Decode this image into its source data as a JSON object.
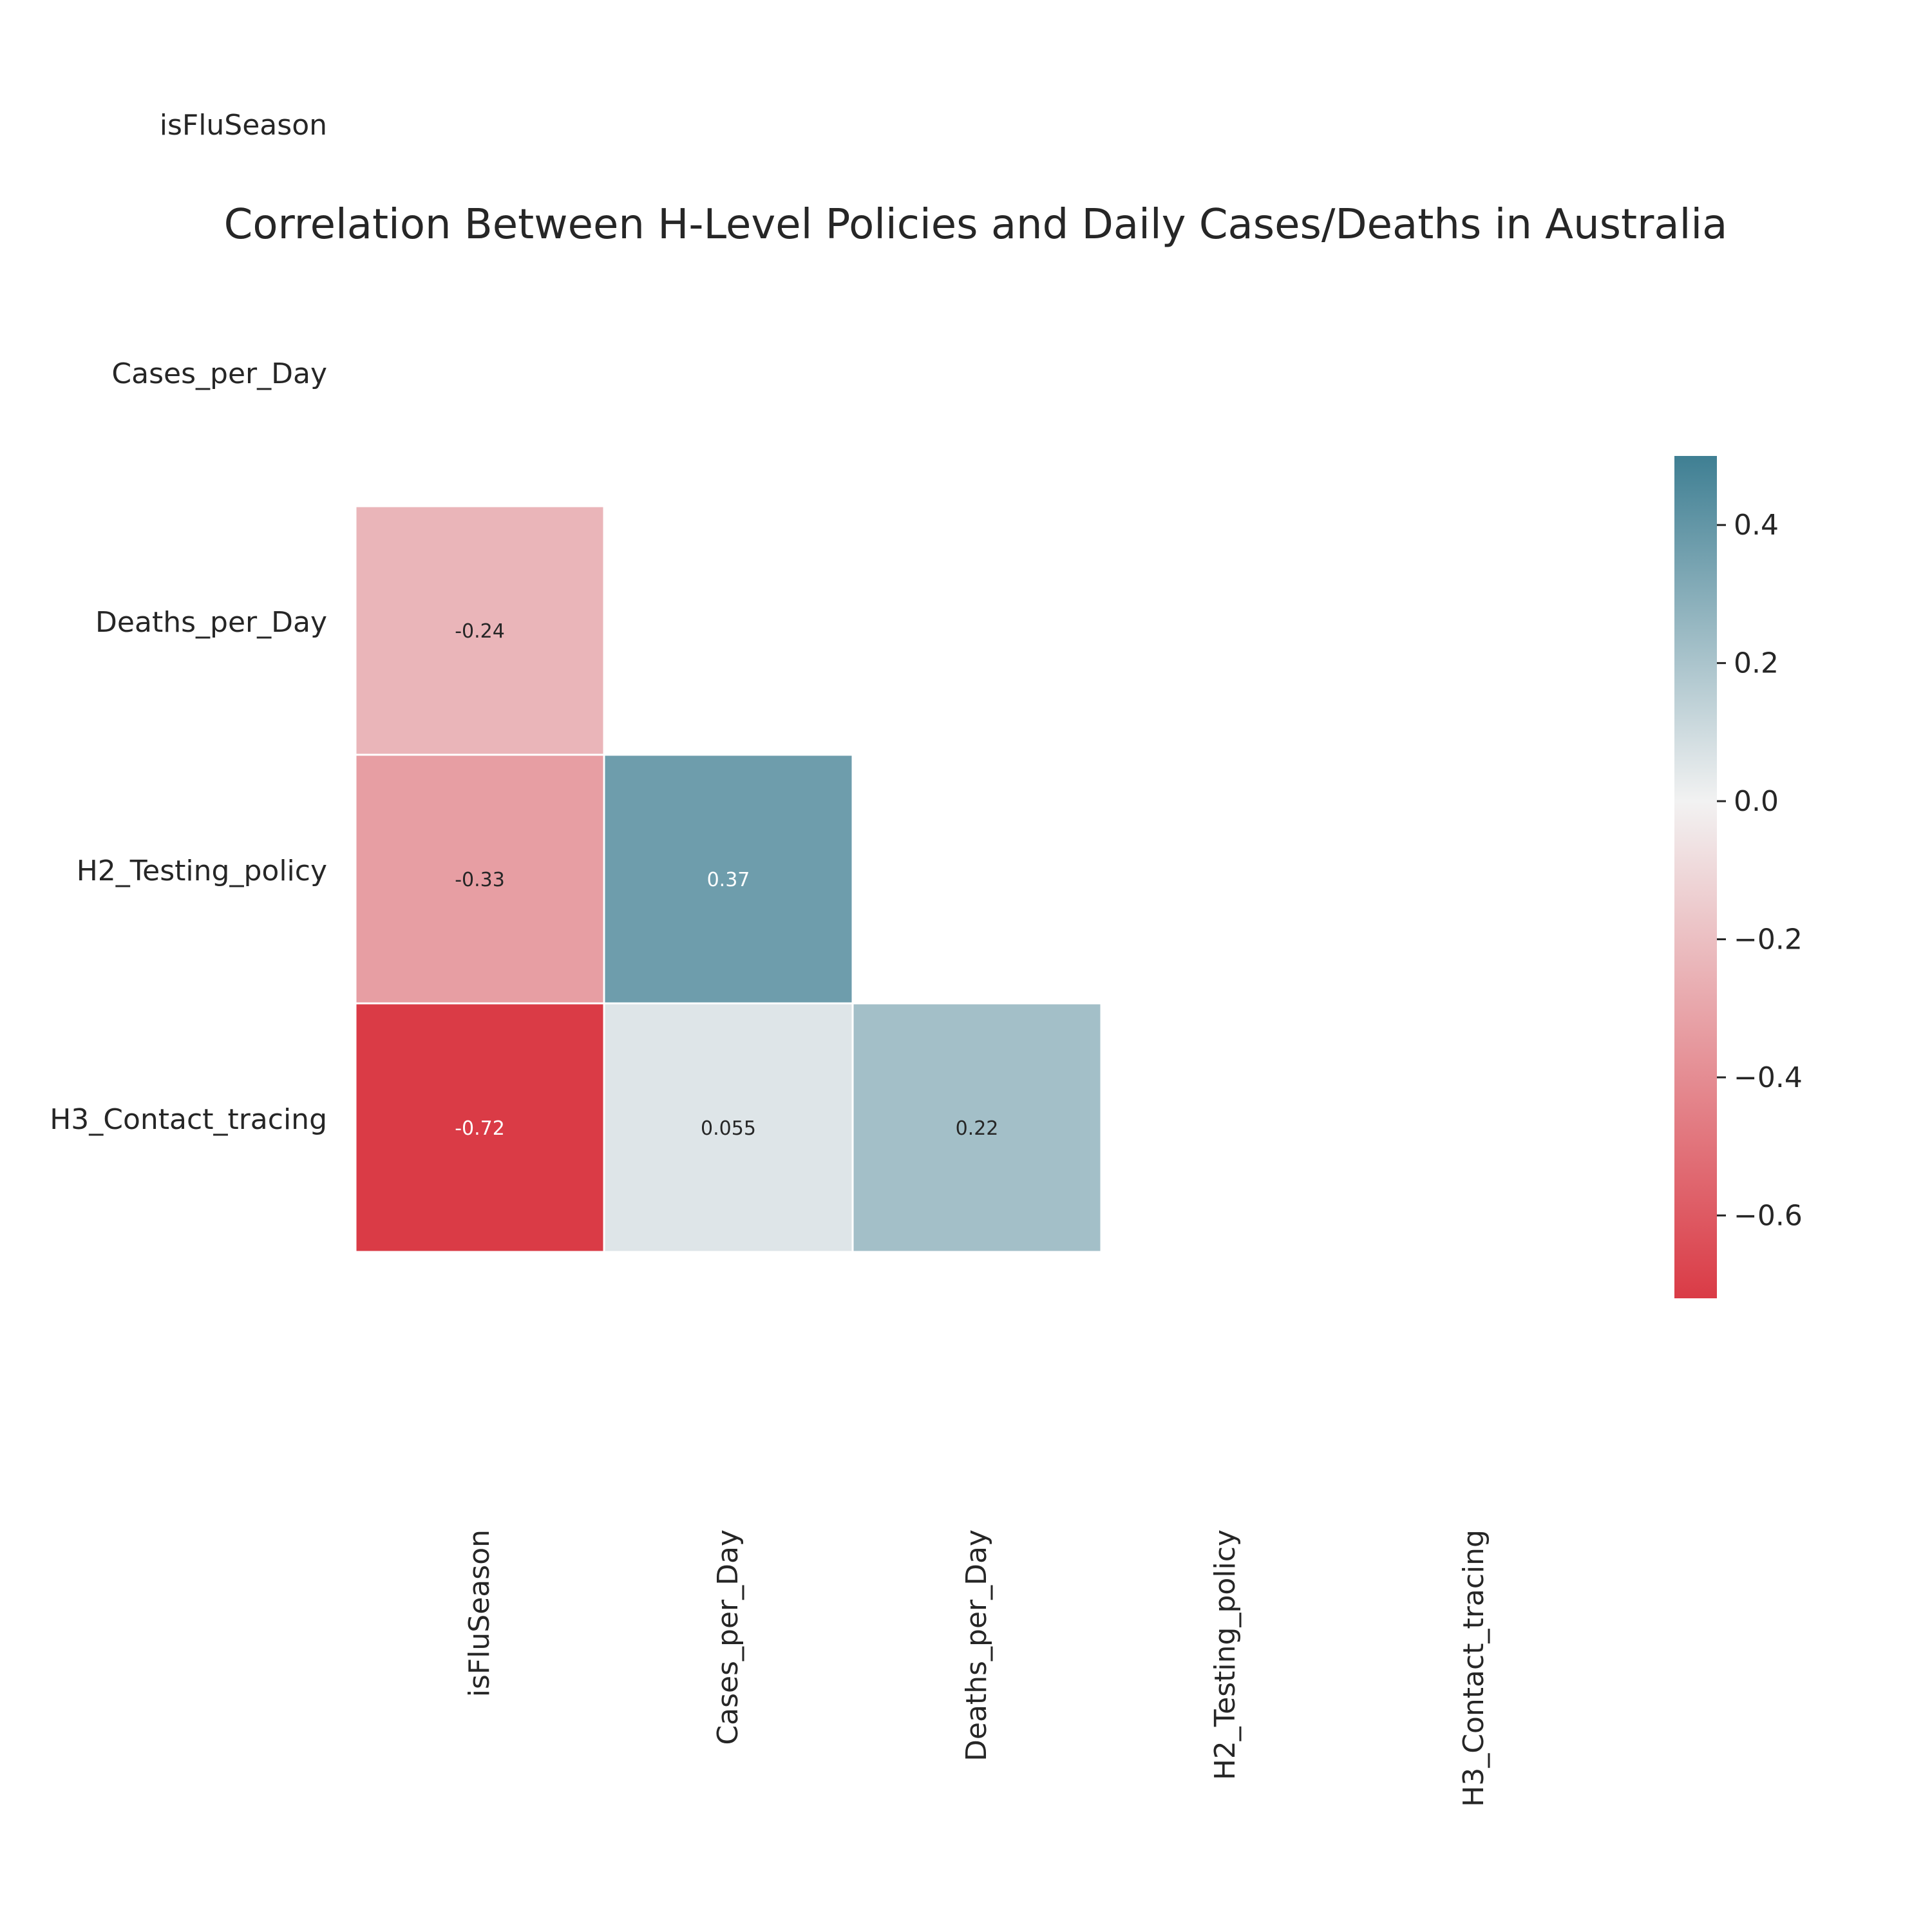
{
  "chart_data": {
    "type": "heatmap",
    "title": "Correlation Between H-Level Policies and Daily Cases/Deaths in Australia",
    "row_labels": [
      "isFluSeason",
      "Cases_per_Day",
      "Deaths_per_Day",
      "H2_Testing_policy",
      "H3_Contact_tracing"
    ],
    "col_labels": [
      "isFluSeason",
      "Cases_per_Day",
      "Deaths_per_Day",
      "H2_Testing_policy",
      "H3_Contact_tracing"
    ],
    "cells": [
      {
        "row": 1,
        "col": 0,
        "value": -0.24,
        "label": "-0.24"
      },
      {
        "row": 2,
        "col": 0,
        "value": -0.33,
        "label": "-0.33"
      },
      {
        "row": 2,
        "col": 1,
        "value": 0.37,
        "label": "0.37"
      },
      {
        "row": 3,
        "col": 0,
        "value": -0.72,
        "label": "-0.72"
      },
      {
        "row": 3,
        "col": 1,
        "value": 0.055,
        "label": "0.055"
      },
      {
        "row": 3,
        "col": 2,
        "value": 0.22,
        "label": "0.22"
      }
    ],
    "mask": "upper-triangle-including-diagonal",
    "colorbar": {
      "range": [
        -0.72,
        0.5
      ],
      "ticks": [
        0.4,
        0.2,
        0.0,
        -0.2,
        -0.4,
        -0.6
      ],
      "tick_labels": [
        "0.4",
        "0.2",
        "0.0",
        "−0.2",
        "−0.4",
        "−0.6"
      ],
      "low_color": "#da3b46",
      "mid_color": "#f2f2f2",
      "high_color": "#3f7f93"
    },
    "grid": false,
    "legend": "colorbar-right"
  }
}
